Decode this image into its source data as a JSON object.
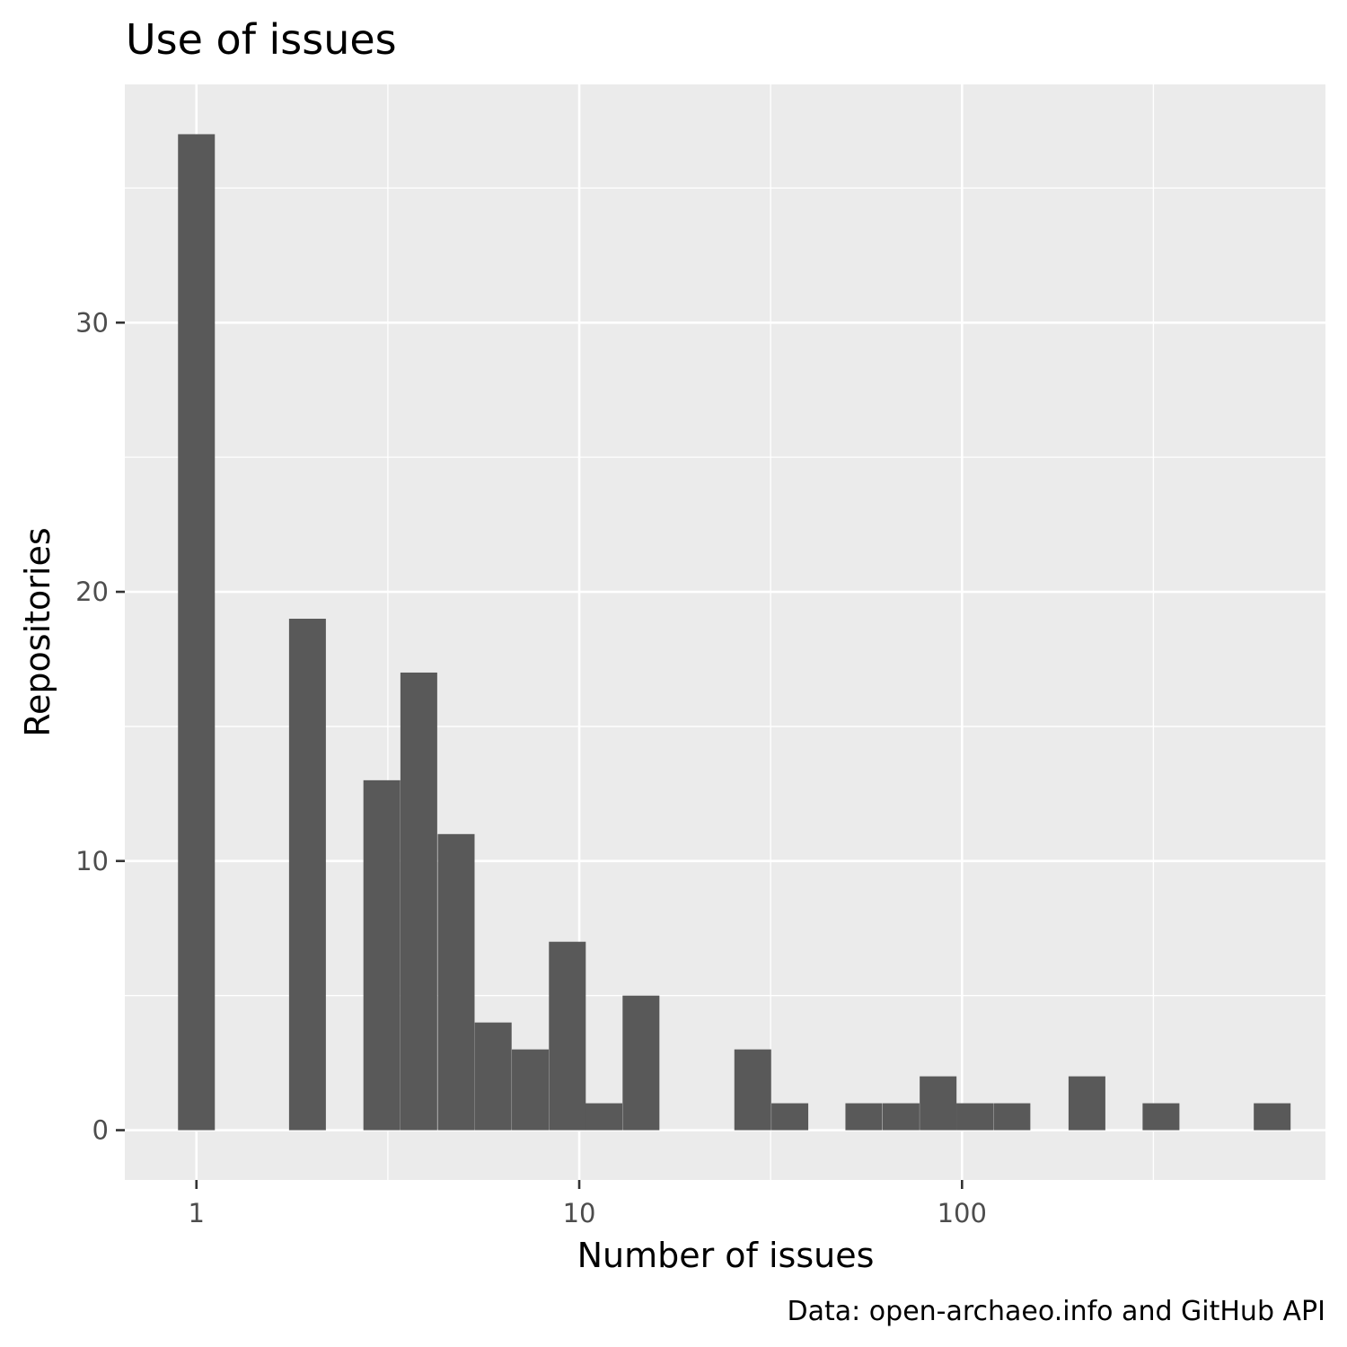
{
  "chart_data": {
    "type": "bar",
    "title": "Use of issues",
    "subtitle": "",
    "xlabel": "Number of issues",
    "ylabel": "Repositories",
    "caption": "Data: open-archaeo.info and GitHub API",
    "x_scale": "log10",
    "xlim": [
      0.65,
      890
    ],
    "ylim": [
      -1.85,
      38.85
    ],
    "x_ticks": [
      1,
      10,
      100
    ],
    "x_tick_labels": [
      "1",
      "10",
      "100"
    ],
    "y_ticks": [
      0,
      10,
      20,
      30
    ],
    "y_tick_labels": [
      "0",
      "10",
      "20",
      "30"
    ],
    "grid": true,
    "legend": "none",
    "bin_width_log10": 0.0962,
    "bins": [
      {
        "x": 1.0,
        "count": 37
      },
      {
        "x": 1.25,
        "count": 0
      },
      {
        "x": 1.56,
        "count": 0
      },
      {
        "x": 1.95,
        "count": 19
      },
      {
        "x": 2.44,
        "count": 0
      },
      {
        "x": 3.05,
        "count": 13
      },
      {
        "x": 3.81,
        "count": 17
      },
      {
        "x": 4.77,
        "count": 11
      },
      {
        "x": 5.96,
        "count": 4
      },
      {
        "x": 7.45,
        "count": 3
      },
      {
        "x": 9.31,
        "count": 7
      },
      {
        "x": 11.6,
        "count": 1
      },
      {
        "x": 14.5,
        "count": 5
      },
      {
        "x": 18.2,
        "count": 0
      },
      {
        "x": 22.7,
        "count": 0
      },
      {
        "x": 28.4,
        "count": 3
      },
      {
        "x": 35.5,
        "count": 1
      },
      {
        "x": 44.3,
        "count": 0
      },
      {
        "x": 55.4,
        "count": 1
      },
      {
        "x": 69.3,
        "count": 1
      },
      {
        "x": 86.6,
        "count": 2
      },
      {
        "x": 108,
        "count": 1
      },
      {
        "x": 135,
        "count": 1
      },
      {
        "x": 169,
        "count": 0
      },
      {
        "x": 212,
        "count": 2
      },
      {
        "x": 265,
        "count": 0
      },
      {
        "x": 331,
        "count": 1
      },
      {
        "x": 413,
        "count": 0
      },
      {
        "x": 517,
        "count": 0
      },
      {
        "x": 646,
        "count": 1
      }
    ]
  },
  "colors": {
    "panel_background": "#ebebeb",
    "grid": "#ffffff",
    "bar_fill": "#595959",
    "tick_label": "#4d4d4d",
    "tick_mark": "#333333"
  }
}
